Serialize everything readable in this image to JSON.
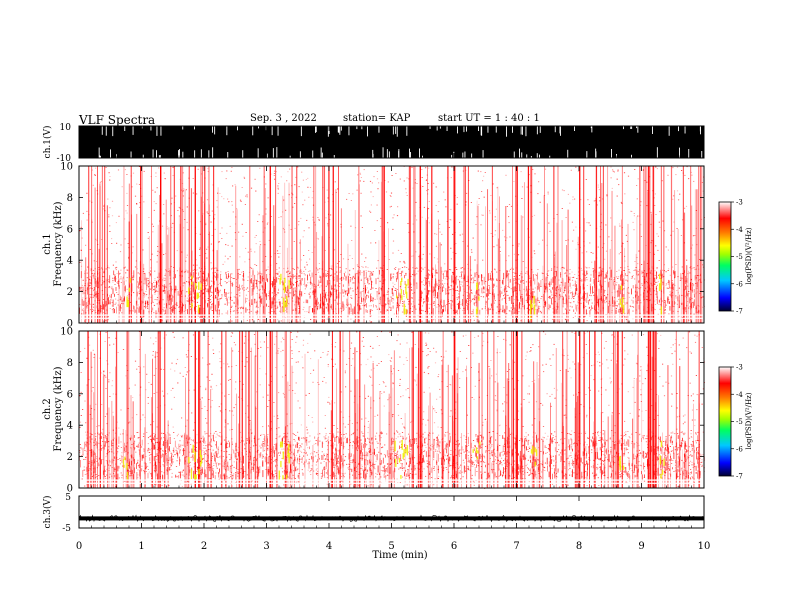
{
  "header": {
    "title": "VLF Spectra",
    "date": "Sep. 3  , 2022",
    "station": "station= KAP",
    "start": "start  UT =   1 : 40 : 1"
  },
  "chart_data": [
    {
      "type": "line",
      "ylabel": "ch.1(V)",
      "ylim": [
        -10,
        10
      ],
      "yticks": [
        "10",
        "-10"
      ],
      "xlim": [
        0,
        10
      ],
      "style": "saturated black waveform filling the full range with occasional white gaps"
    },
    {
      "type": "heatmap",
      "ylabel": "ch.1 Frequency (kHz)",
      "ylim": [
        0,
        10
      ],
      "yticks": [
        "10",
        "8",
        "6",
        "4",
        "2",
        "0"
      ],
      "xlim": [
        0,
        10
      ],
      "colorbar": {
        "label": "log(PSD)(V²/Hz)",
        "range": [
          -7,
          -3
        ],
        "ticks": [
          "-3",
          "-4",
          "-5",
          "-6",
          "-7"
        ]
      },
      "style": "white background with dense red vertical impulsive streaks; strongest power 0.8-3.5 kHz with yellow spots"
    },
    {
      "type": "heatmap",
      "ylabel": "ch.2 Frequency (kHz)",
      "ylim": [
        0,
        10
      ],
      "yticks": [
        "10",
        "8",
        "6",
        "4",
        "2",
        "0"
      ],
      "xlim": [
        0,
        10
      ],
      "colorbar": {
        "label": "log(PSD)(V²/Hz)",
        "range": [
          -7,
          -3
        ],
        "ticks": [
          "-3",
          "-4",
          "-5",
          "-6",
          "-7"
        ]
      },
      "style": "white background with dense red vertical impulsive streaks; strongest power 0.8-3.5 kHz with yellow spots"
    },
    {
      "type": "line",
      "ylabel": "ch.3(V)",
      "ylim": [
        -5,
        5
      ],
      "yticks": [
        "5",
        "-5"
      ],
      "xlim": [
        0,
        10
      ],
      "style": "thin black noise band centred near -2 V"
    }
  ],
  "xaxis": {
    "label": "Time  (min)",
    "ticks": [
      "0",
      "1",
      "2",
      "3",
      "4",
      "5",
      "6",
      "7",
      "8",
      "9",
      "10"
    ]
  },
  "colors": {
    "colormap": [
      "#000033",
      "#0000ff",
      "#00c8ff",
      "#00ff60",
      "#a0ff00",
      "#ffff00",
      "#ff7a00",
      "#ff0000",
      "#ffffff"
    ],
    "streak_red": "#ff0000",
    "hot_yellow": "#f0f000"
  }
}
